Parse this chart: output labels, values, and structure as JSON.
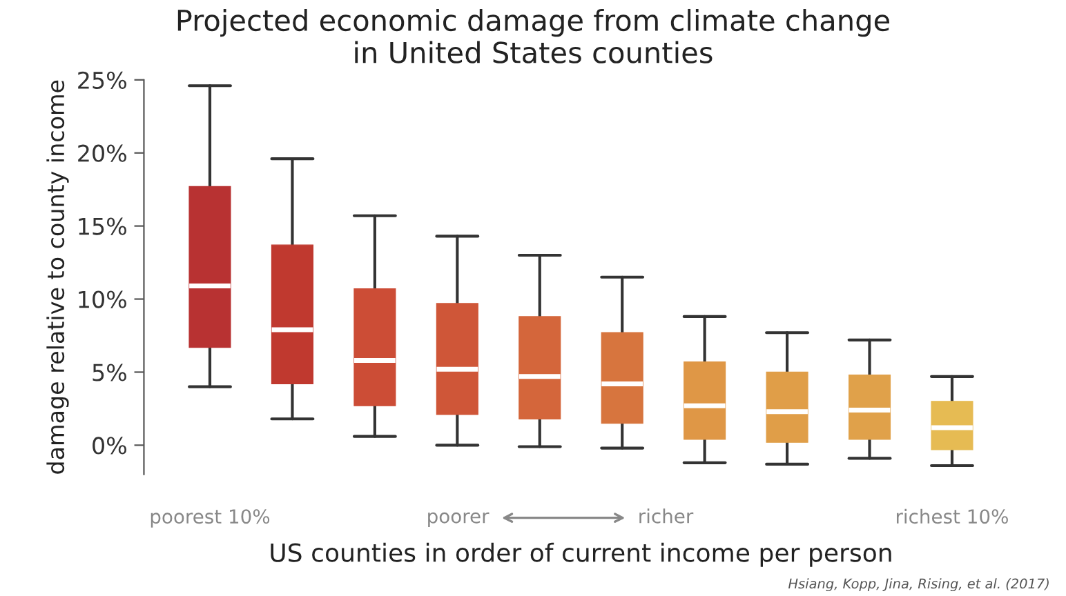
{
  "chart_data": {
    "type": "box",
    "title": "Projected economic damage from climate change\nin United States counties",
    "xlabel": "US counties in order of current income per person",
    "ylabel": "damage relative to county income",
    "categories": [
      "poorest 10%",
      null,
      null,
      null,
      null,
      null,
      null,
      null,
      null,
      "richest 10%"
    ],
    "boxes": [
      {
        "low": 4.0,
        "q1": 6.7,
        "median": 10.9,
        "q3": 17.7,
        "high": 24.6
      },
      {
        "low": 1.8,
        "q1": 4.2,
        "median": 7.9,
        "q3": 13.7,
        "high": 19.6
      },
      {
        "low": 0.6,
        "q1": 2.7,
        "median": 5.8,
        "q3": 10.7,
        "high": 15.7
      },
      {
        "low": 0.0,
        "q1": 2.1,
        "median": 5.2,
        "q3": 9.7,
        "high": 14.3
      },
      {
        "low": -0.1,
        "q1": 1.8,
        "median": 4.7,
        "q3": 8.8,
        "high": 13.0
      },
      {
        "low": -0.2,
        "q1": 1.5,
        "median": 4.2,
        "q3": 7.7,
        "high": 11.5
      },
      {
        "low": -1.2,
        "q1": 0.4,
        "median": 2.7,
        "q3": 5.7,
        "high": 8.8
      },
      {
        "low": -1.3,
        "q1": 0.2,
        "median": 2.3,
        "q3": 5.0,
        "high": 7.7
      },
      {
        "low": -0.9,
        "q1": 0.4,
        "median": 2.4,
        "q3": 4.8,
        "high": 7.2
      },
      {
        "low": -1.4,
        "q1": -0.3,
        "median": 1.2,
        "q3": 3.0,
        "high": 4.7
      }
    ],
    "colors": [
      "#b83232",
      "#c0392f",
      "#cc4d36",
      "#cf5638",
      "#d4663b",
      "#d7753e",
      "#df9746",
      "#e09e48",
      "#e0a14a",
      "#e6bb53"
    ],
    "ylim": [
      -2,
      25
    ],
    "yticks": [
      {
        "value": 0,
        "label": "0%"
      },
      {
        "value": 5,
        "label": "5%"
      },
      {
        "value": 10,
        "label": "10%"
      },
      {
        "value": 15,
        "label": "15%"
      },
      {
        "value": 20,
        "label": "20%"
      },
      {
        "value": 25,
        "label": "25%"
      }
    ],
    "grid": false,
    "annotations": [
      "poorer",
      "richer",
      "Hsiang, Kopp, Jina, Rising, et al. (2017)"
    ]
  }
}
